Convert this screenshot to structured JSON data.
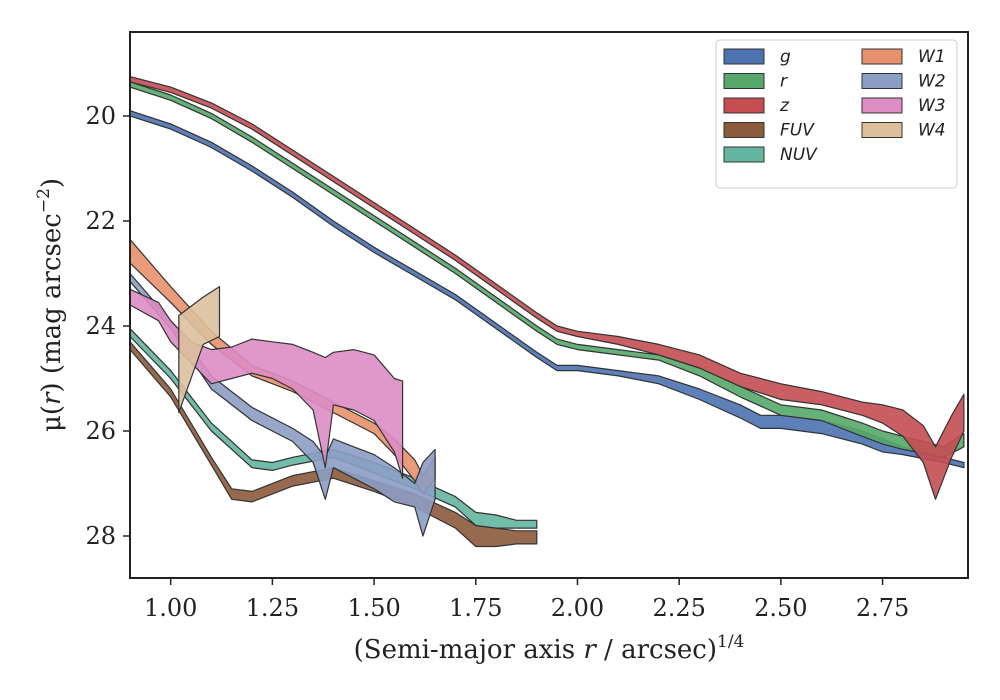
{
  "chart_data": {
    "type": "area",
    "xlabel_prefix": "(Semi-major axis ",
    "xlabel_var": "r",
    "xlabel_suffix": " / arcsec)",
    "xlabel_sup": "1/4",
    "ylabel_prefix": "μ(",
    "ylabel_var": "r",
    "ylabel_mid": ") (mag arcsec",
    "ylabel_sup": "−2",
    "ylabel_suffix": ")",
    "xlim": [
      0.9,
      2.96
    ],
    "ylim": [
      28.8,
      18.4
    ],
    "y_inverted": true,
    "xticks": [
      1.0,
      1.25,
      1.5,
      1.75,
      2.0,
      2.25,
      2.5,
      2.75
    ],
    "xtick_labels": [
      "1.00",
      "1.25",
      "1.50",
      "1.75",
      "2.00",
      "2.25",
      "2.50",
      "2.75"
    ],
    "yticks": [
      20,
      22,
      24,
      26,
      28
    ],
    "ytick_labels": [
      "20",
      "22",
      "24",
      "26",
      "28"
    ],
    "grid": false,
    "legend_position": "top-right",
    "legend_columns": 2,
    "series": [
      {
        "name": "g",
        "color": "#4c72b0",
        "x": [
          0.9,
          1.0,
          1.1,
          1.2,
          1.3,
          1.4,
          1.5,
          1.6,
          1.7,
          1.8,
          1.9,
          1.95,
          2.0,
          2.1,
          2.2,
          2.3,
          2.4,
          2.45,
          2.5,
          2.6,
          2.7,
          2.75,
          2.8,
          2.9,
          2.95
        ],
        "y_bright": [
          19.9,
          20.15,
          20.5,
          20.95,
          21.45,
          22.0,
          22.5,
          22.95,
          23.4,
          23.95,
          24.5,
          24.75,
          24.75,
          24.85,
          24.95,
          25.2,
          25.5,
          25.7,
          25.7,
          25.8,
          26.0,
          26.15,
          26.3,
          26.5,
          26.6
        ],
        "y_faint": [
          20.0,
          20.25,
          20.6,
          21.05,
          21.55,
          22.1,
          22.6,
          23.05,
          23.5,
          24.05,
          24.6,
          24.85,
          24.85,
          24.95,
          25.1,
          25.4,
          25.75,
          25.95,
          25.95,
          26.05,
          26.25,
          26.4,
          26.45,
          26.6,
          26.7
        ]
      },
      {
        "name": "r",
        "color": "#55a868",
        "x": [
          0.9,
          1.0,
          1.1,
          1.2,
          1.3,
          1.4,
          1.5,
          1.6,
          1.7,
          1.8,
          1.9,
          1.95,
          2.0,
          2.1,
          2.2,
          2.3,
          2.4,
          2.5,
          2.6,
          2.7,
          2.75,
          2.8,
          2.9,
          2.95
        ],
        "y_bright": [
          19.35,
          19.6,
          19.95,
          20.4,
          20.9,
          21.4,
          21.9,
          22.4,
          22.9,
          23.45,
          24.0,
          24.25,
          24.35,
          24.45,
          24.55,
          24.8,
          25.15,
          25.5,
          25.6,
          25.85,
          26.0,
          26.1,
          26.3,
          26.05
        ],
        "y_faint": [
          19.45,
          19.7,
          20.05,
          20.5,
          21.0,
          21.5,
          22.0,
          22.5,
          23.0,
          23.55,
          24.1,
          24.35,
          24.45,
          24.55,
          24.65,
          24.95,
          25.35,
          25.7,
          25.8,
          26.1,
          26.25,
          26.35,
          26.5,
          26.3
        ]
      },
      {
        "name": "z",
        "color": "#c44e52",
        "x": [
          0.9,
          1.0,
          1.1,
          1.2,
          1.3,
          1.4,
          1.5,
          1.6,
          1.7,
          1.8,
          1.9,
          1.95,
          2.0,
          2.1,
          2.2,
          2.3,
          2.4,
          2.5,
          2.6,
          2.7,
          2.75,
          2.8,
          2.85,
          2.88,
          2.92,
          2.95
        ],
        "y_bright": [
          19.25,
          19.45,
          19.75,
          20.15,
          20.65,
          21.15,
          21.65,
          22.15,
          22.65,
          23.2,
          23.75,
          24.0,
          24.1,
          24.2,
          24.35,
          24.55,
          24.9,
          25.1,
          25.25,
          25.45,
          25.5,
          25.6,
          25.9,
          26.3,
          25.7,
          25.3
        ],
        "y_faint": [
          19.35,
          19.55,
          19.85,
          20.25,
          20.75,
          21.25,
          21.75,
          22.25,
          22.75,
          23.3,
          23.85,
          24.1,
          24.2,
          24.35,
          24.55,
          24.8,
          25.15,
          25.4,
          25.5,
          25.7,
          25.85,
          26.1,
          26.6,
          27.3,
          26.5,
          26.0
        ]
      },
      {
        "name": "FUV",
        "color": "#8c5a3c",
        "x": [
          0.9,
          1.0,
          1.1,
          1.15,
          1.2,
          1.3,
          1.4,
          1.5,
          1.6,
          1.7,
          1.75,
          1.8,
          1.85,
          1.9
        ],
        "y_bright": [
          24.3,
          25.2,
          26.5,
          27.1,
          27.15,
          26.85,
          26.7,
          26.95,
          27.2,
          27.55,
          27.8,
          27.85,
          27.9,
          27.9
        ],
        "y_faint": [
          24.45,
          25.35,
          26.65,
          27.3,
          27.35,
          27.05,
          26.9,
          27.15,
          27.45,
          27.85,
          28.2,
          28.2,
          28.15,
          28.15
        ]
      },
      {
        "name": "NUV",
        "color": "#64b5a0",
        "x": [
          0.9,
          1.0,
          1.1,
          1.2,
          1.25,
          1.3,
          1.4,
          1.5,
          1.6,
          1.7,
          1.75,
          1.8,
          1.85,
          1.9
        ],
        "y_bright": [
          24.05,
          24.85,
          25.85,
          26.55,
          26.6,
          26.5,
          26.35,
          26.6,
          26.9,
          27.25,
          27.55,
          27.6,
          27.7,
          27.7
        ],
        "y_faint": [
          24.2,
          25.0,
          26.0,
          26.7,
          26.75,
          26.65,
          26.5,
          26.8,
          27.1,
          27.45,
          27.8,
          27.85,
          27.85,
          27.85
        ]
      },
      {
        "name": "W1",
        "color": "#e8906c",
        "x": [
          0.9,
          1.0,
          1.1,
          1.2,
          1.3,
          1.4,
          1.5,
          1.55,
          1.6,
          1.62,
          1.65
        ],
        "y_bright": [
          22.35,
          23.25,
          24.1,
          24.75,
          25.05,
          25.45,
          25.85,
          26.15,
          26.55,
          26.85,
          26.5
        ],
        "y_faint": [
          22.8,
          23.55,
          24.35,
          24.95,
          25.25,
          25.65,
          26.05,
          26.45,
          26.95,
          27.2,
          26.9
        ]
      },
      {
        "name": "W2",
        "color": "#8c9dc4",
        "x": [
          0.9,
          1.0,
          1.1,
          1.2,
          1.3,
          1.35,
          1.38,
          1.4,
          1.45,
          1.5,
          1.55,
          1.6,
          1.62,
          1.65
        ],
        "y_bright": [
          23.0,
          23.9,
          24.95,
          25.55,
          25.95,
          26.2,
          26.5,
          26.15,
          26.3,
          26.45,
          26.7,
          27.0,
          26.6,
          26.35
        ],
        "y_faint": [
          23.15,
          24.05,
          25.2,
          25.8,
          26.2,
          26.6,
          27.3,
          26.7,
          26.9,
          27.1,
          27.35,
          27.45,
          28.0,
          27.3
        ]
      },
      {
        "name": "W3",
        "color": "#dd8cc4",
        "x": [
          0.9,
          0.97,
          1.0,
          1.05,
          1.1,
          1.15,
          1.2,
          1.25,
          1.3,
          1.35,
          1.38,
          1.4,
          1.45,
          1.5,
          1.55,
          1.57
        ],
        "y_bright": [
          23.3,
          23.55,
          23.9,
          24.3,
          24.45,
          24.4,
          24.25,
          24.3,
          24.35,
          24.5,
          24.6,
          24.5,
          24.45,
          24.55,
          25.0,
          25.05
        ],
        "y_faint": [
          23.6,
          23.9,
          24.3,
          24.7,
          25.1,
          25.0,
          24.9,
          25.0,
          25.2,
          25.6,
          26.7,
          25.5,
          25.6,
          25.8,
          26.4,
          26.9
        ]
      },
      {
        "name": "W4",
        "color": "#dcc09c",
        "x": [
          1.02,
          1.08,
          1.12
        ],
        "y_bright": [
          23.8,
          23.45,
          23.25
        ],
        "y_faint": [
          25.65,
          24.35,
          24.2
        ]
      }
    ]
  }
}
